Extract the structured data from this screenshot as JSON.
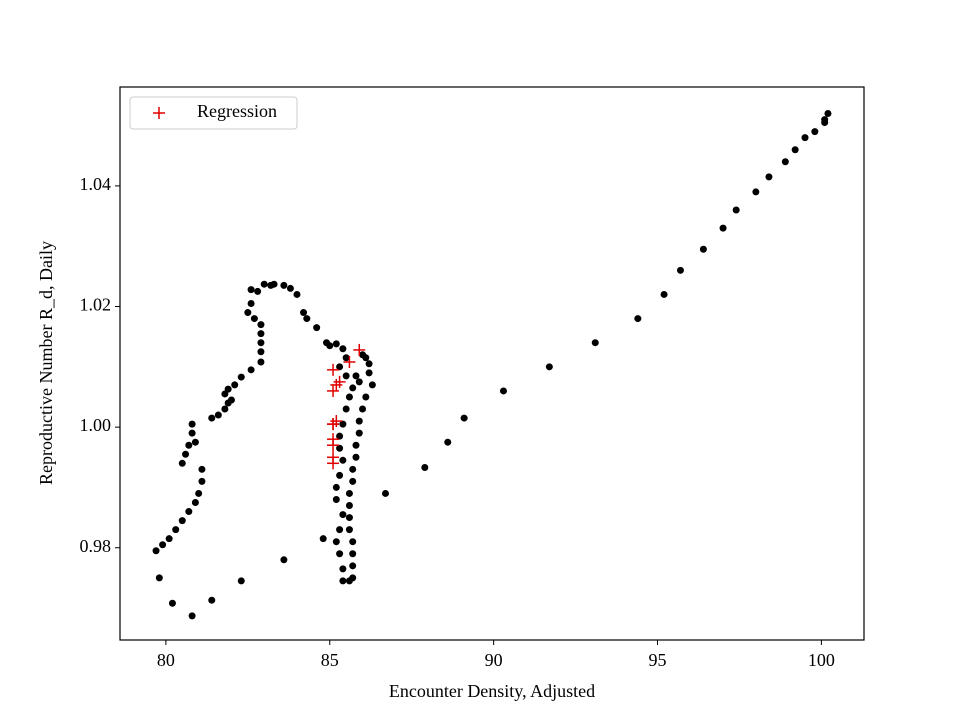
{
  "chart_data": {
    "type": "scatter",
    "xlabel": "Encounter Density, Adjusted",
    "ylabel": "Reproductive Number R_d, Daily",
    "xlim": [
      78.6,
      101.3
    ],
    "ylim": [
      0.9647,
      1.0564
    ],
    "xticks": [
      80,
      85,
      90,
      95,
      100
    ],
    "yticks": [
      0.98,
      {
        "value": 1.0,
        "label": "1.00"
      },
      1.02,
      1.04
    ],
    "legend": "upper left",
    "series": [
      {
        "color": "#000000",
        "marker": "circle",
        "x": [
          100.2,
          100.1,
          100.1,
          99.8,
          99.5,
          99.2,
          98.9,
          98.4,
          98.0,
          97.4,
          97.0,
          96.4,
          95.7,
          95.2,
          94.4,
          93.1,
          91.7,
          90.3,
          89.1,
          88.6,
          87.9,
          86.7,
          84.8,
          83.6,
          82.3,
          81.4,
          80.8,
          80.2,
          79.8,
          79.7,
          79.9,
          80.1,
          80.3,
          80.5,
          80.7,
          80.9,
          81.0,
          81.1,
          81.1,
          80.9,
          80.8,
          80.8,
          80.6,
          80.5,
          80.7,
          81.4,
          81.6,
          81.8,
          81.9,
          82.0,
          81.8,
          81.9,
          82.1,
          82.3,
          82.6,
          82.9,
          82.9,
          82.9,
          82.9,
          82.9,
          82.7,
          82.5,
          82.6,
          82.6,
          82.8,
          83.0,
          83.2,
          83.3,
          83.6,
          83.8,
          84.0,
          84.2,
          84.3,
          84.6,
          84.9,
          85.0,
          85.2,
          85.4,
          85.5,
          85.3,
          85.5,
          85.8,
          85.9,
          86.0,
          86.1,
          86.2,
          86.2,
          86.3,
          86.1,
          86.0,
          85.9,
          85.9,
          85.8,
          85.8,
          85.7,
          85.7,
          85.6,
          85.6,
          85.6,
          85.6,
          85.7,
          85.7,
          85.7,
          85.7,
          85.6,
          85.4,
          85.4,
          85.3,
          85.2,
          85.3,
          85.4,
          85.2,
          85.2,
          85.3,
          85.4,
          85.3,
          85.3,
          85.4,
          85.5,
          85.6,
          85.7
        ],
        "values": [
          1.052,
          1.051,
          1.0505,
          1.049,
          1.048,
          1.046,
          1.044,
          1.0415,
          1.039,
          1.036,
          1.033,
          1.0295,
          1.026,
          1.022,
          1.018,
          1.014,
          1.01,
          1.006,
          1.0015,
          0.9975,
          0.9933,
          0.989,
          0.9815,
          0.978,
          0.9745,
          0.9713,
          0.9687,
          0.9708,
          0.975,
          0.9795,
          0.9805,
          0.9815,
          0.983,
          0.9845,
          0.986,
          0.9875,
          0.989,
          0.991,
          0.993,
          0.9975,
          0.999,
          1.0005,
          0.9955,
          0.994,
          0.997,
          1.0015,
          1.002,
          1.003,
          1.004,
          1.0045,
          1.0055,
          1.0063,
          1.007,
          1.0083,
          1.0095,
          1.0108,
          1.0125,
          1.014,
          1.0155,
          1.017,
          1.018,
          1.019,
          1.0205,
          1.0228,
          1.0225,
          1.0237,
          1.0235,
          1.0237,
          1.0235,
          1.023,
          1.022,
          1.019,
          1.018,
          1.0165,
          1.014,
          1.0135,
          1.0138,
          1.013,
          1.0115,
          1.01,
          1.0085,
          1.0085,
          1.0075,
          1.012,
          1.0115,
          1.0105,
          1.009,
          1.007,
          1.005,
          1.003,
          1.001,
          0.999,
          0.997,
          0.995,
          0.993,
          0.991,
          0.989,
          0.987,
          0.985,
          0.983,
          0.981,
          0.979,
          0.977,
          0.975,
          0.9745,
          0.9745,
          0.9765,
          0.979,
          0.981,
          0.983,
          0.9855,
          0.988,
          0.99,
          0.992,
          0.9945,
          0.9965,
          0.9985,
          1.0005,
          1.003,
          1.005,
          1.0065
        ]
      },
      {
        "name": "Regression",
        "color": "#e00000",
        "marker": "plus",
        "x": [
          85.1,
          85.1,
          85.1,
          85.1,
          85.1,
          85.2,
          85.1,
          85.2,
          85.3,
          85.1,
          85.9,
          85.6,
          85.1
        ],
        "values": [
          0.994,
          0.995,
          0.997,
          0.998,
          1.0005,
          1.001,
          1.006,
          1.007,
          1.0075,
          1.0095,
          1.0128,
          1.0108,
          1.0005
        ]
      }
    ]
  }
}
